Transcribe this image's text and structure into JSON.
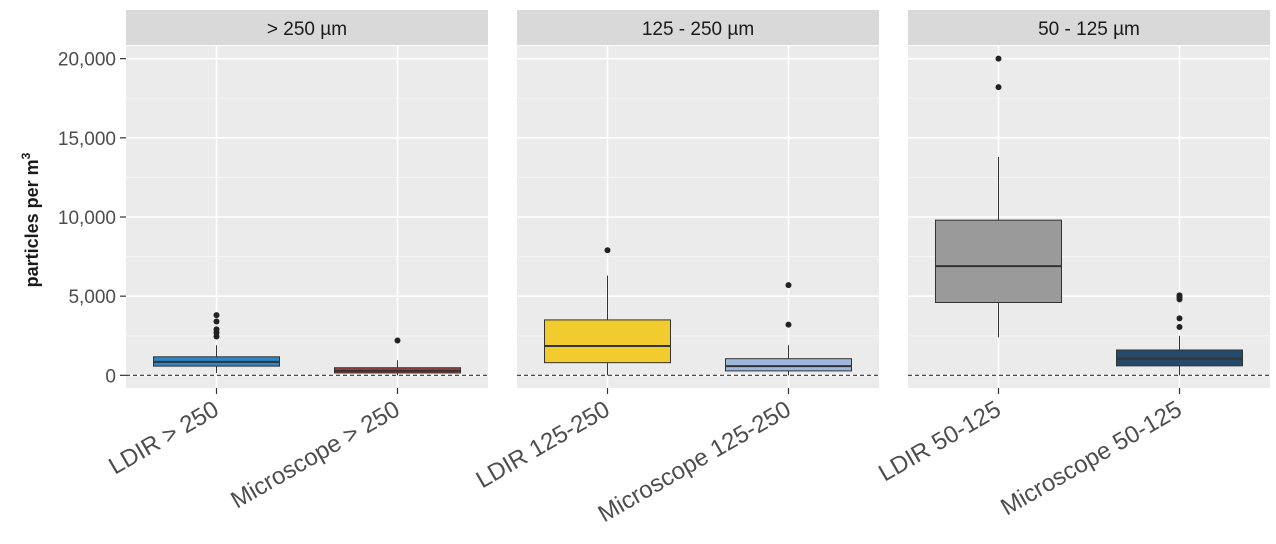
{
  "chart_data": {
    "type": "box",
    "ylabel": "particles per m",
    "ylabel_superscript": "3",
    "ylim": [
      -800,
      20800
    ],
    "yticks": [
      0,
      5000,
      10000,
      15000,
      20000
    ],
    "ytick_labels": [
      "0",
      "5,000",
      "10,000",
      "15,000",
      "20,000"
    ],
    "reference_line": {
      "y": 0,
      "style": "dashed"
    },
    "grid": true,
    "legend": "none",
    "panels": [
      {
        "strip": "> 250 µm",
        "boxes": [
          {
            "category": "LDIR > 250",
            "color": "#2e86c9",
            "whisker_low": 150,
            "q1": 580,
            "median": 850,
            "q3": 1170,
            "whisker_high": 1900,
            "outliers": [
              2450,
              2700,
              2900,
              3400,
              3800
            ]
          },
          {
            "category": "Microscope > 250",
            "color": "#a0403a",
            "whisker_low": 0,
            "q1": 150,
            "median": 280,
            "q3": 480,
            "whisker_high": 950,
            "outliers": [
              2200
            ]
          }
        ]
      },
      {
        "strip": "125 - 250 µm",
        "boxes": [
          {
            "category": "LDIR 125-250",
            "color": "#f2cc2e",
            "whisker_low": 0,
            "q1": 800,
            "median": 1850,
            "q3": 3500,
            "whisker_high": 6300,
            "outliers": [
              7900
            ]
          },
          {
            "category": "Microscope 125-250",
            "color": "#9fb6dd",
            "whisker_low": 0,
            "q1": 280,
            "median": 580,
            "q3": 1050,
            "whisker_high": 1900,
            "outliers": [
              3200,
              5700
            ]
          }
        ]
      },
      {
        "strip": "50 - 125 µm",
        "boxes": [
          {
            "category": "LDIR 50-125",
            "color": "#9a9a9a",
            "whisker_low": 2400,
            "q1": 4600,
            "median": 6900,
            "q3": 9800,
            "whisker_high": 13800,
            "outliers": [
              18200,
              20000
            ]
          },
          {
            "category": "Microscope 50-125",
            "color": "#234a6a",
            "whisker_low": 0,
            "q1": 600,
            "median": 1050,
            "q3": 1600,
            "whisker_high": 2500,
            "outliers": [
              3050,
              3600,
              4800,
              4950,
              5050
            ]
          }
        ]
      }
    ]
  }
}
